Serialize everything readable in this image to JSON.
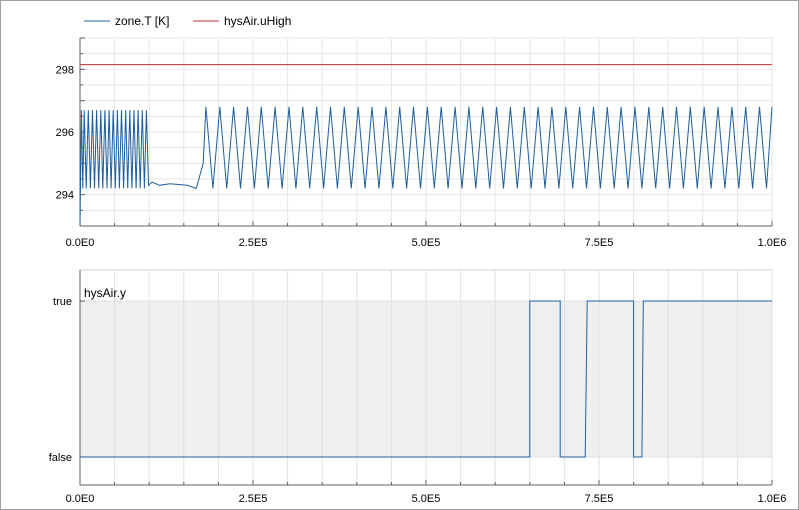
{
  "chart_data": [
    {
      "type": "line",
      "xlim": [
        0,
        1000000
      ],
      "ylim": [
        293,
        299
      ],
      "x_ticks": [
        "0.0E0",
        "2.5E5",
        "5.0E5",
        "7.5E5",
        "1.0E6"
      ],
      "y_ticks": [
        "294",
        "296",
        "298"
      ],
      "grid": true,
      "legend": "top-left",
      "series": [
        {
          "name": "zone.T [K]",
          "color": "#1f5fa0",
          "points": [
            [
              0,
              293.0
            ],
            [
              2000,
              296.7
            ],
            [
              4000,
              294.2
            ],
            [
              6000,
              296.7
            ],
            [
              9000,
              294.2
            ],
            [
              12000,
              296.7
            ],
            [
              15000,
              294.2
            ],
            [
              18000,
              296.7
            ],
            [
              21000,
              294.2
            ],
            [
              24000,
              296.7
            ],
            [
              27000,
              294.2
            ],
            [
              30000,
              296.7
            ],
            [
              33000,
              294.2
            ],
            [
              36000,
              296.7
            ],
            [
              39000,
              294.2
            ],
            [
              42000,
              296.7
            ],
            [
              45000,
              294.2
            ],
            [
              48000,
              296.7
            ],
            [
              51000,
              294.2
            ],
            [
              54000,
              296.7
            ],
            [
              57000,
              294.2
            ],
            [
              60000,
              296.7
            ],
            [
              63000,
              294.2
            ],
            [
              66000,
              296.7
            ],
            [
              69000,
              294.2
            ],
            [
              72000,
              296.7
            ],
            [
              75000,
              294.2
            ],
            [
              78000,
              296.7
            ],
            [
              81000,
              294.2
            ],
            [
              84000,
              296.7
            ],
            [
              87000,
              294.2
            ],
            [
              90000,
              296.7
            ],
            [
              93000,
              294.2
            ],
            [
              96000,
              296.7
            ],
            [
              99000,
              294.3
            ],
            [
              104000,
              294.4
            ],
            [
              115000,
              294.3
            ],
            [
              130000,
              294.35
            ],
            [
              155000,
              294.3
            ],
            [
              168000,
              294.2
            ],
            [
              178000,
              295.0
            ],
            [
              182000,
              296.8
            ],
            [
              192000,
              294.2
            ],
            [
              202000,
              296.8
            ],
            [
              212000,
              294.2
            ],
            [
              222000,
              296.8
            ],
            [
              232000,
              294.2
            ],
            [
              242000,
              296.8
            ],
            [
              252000,
              294.2
            ],
            [
              262000,
              296.8
            ],
            [
              272000,
              294.2
            ],
            [
              282000,
              296.8
            ],
            [
              292000,
              294.2
            ],
            [
              302000,
              296.8
            ],
            [
              312000,
              294.2
            ],
            [
              322000,
              296.8
            ],
            [
              332000,
              294.2
            ],
            [
              342000,
              296.8
            ],
            [
              352000,
              294.2
            ],
            [
              362000,
              296.8
            ],
            [
              372000,
              294.2
            ],
            [
              382000,
              296.8
            ],
            [
              392000,
              294.2
            ],
            [
              402000,
              296.8
            ],
            [
              412000,
              294.2
            ],
            [
              422000,
              296.8
            ],
            [
              432000,
              294.2
            ],
            [
              442000,
              296.8
            ],
            [
              452000,
              294.2
            ],
            [
              462000,
              296.8
            ],
            [
              472000,
              294.2
            ],
            [
              482000,
              296.8
            ],
            [
              492000,
              294.2
            ],
            [
              502000,
              296.8
            ],
            [
              512000,
              294.2
            ],
            [
              522000,
              296.8
            ],
            [
              532000,
              294.2
            ],
            [
              542000,
              296.8
            ],
            [
              552000,
              294.2
            ],
            [
              562000,
              296.8
            ],
            [
              572000,
              294.2
            ],
            [
              582000,
              296.8
            ],
            [
              592000,
              294.2
            ],
            [
              602000,
              296.8
            ],
            [
              612000,
              294.2
            ],
            [
              622000,
              296.8
            ],
            [
              632000,
              294.2
            ],
            [
              642000,
              296.8
            ],
            [
              652000,
              294.2
            ],
            [
              662000,
              296.8
            ],
            [
              672000,
              294.2
            ],
            [
              682000,
              296.8
            ],
            [
              692000,
              294.2
            ],
            [
              702000,
              296.8
            ],
            [
              712000,
              294.2
            ],
            [
              722000,
              296.8
            ],
            [
              732000,
              294.2
            ],
            [
              742000,
              296.8
            ],
            [
              752000,
              294.2
            ],
            [
              762000,
              296.8
            ],
            [
              772000,
              294.2
            ],
            [
              782000,
              296.8
            ],
            [
              792000,
              294.2
            ],
            [
              802000,
              296.8
            ],
            [
              812000,
              294.2
            ],
            [
              822000,
              296.8
            ],
            [
              832000,
              294.2
            ],
            [
              842000,
              296.8
            ],
            [
              852000,
              294.2
            ],
            [
              862000,
              296.8
            ],
            [
              872000,
              294.2
            ],
            [
              882000,
              296.8
            ],
            [
              892000,
              294.2
            ],
            [
              902000,
              296.8
            ],
            [
              912000,
              294.2
            ],
            [
              922000,
              296.8
            ],
            [
              932000,
              294.2
            ],
            [
              942000,
              296.8
            ],
            [
              952000,
              294.2
            ],
            [
              962000,
              296.8
            ],
            [
              972000,
              294.2
            ],
            [
              982000,
              296.8
            ],
            [
              992000,
              294.2
            ],
            [
              1000000,
              296.8
            ]
          ]
        },
        {
          "name": "hysAir.uHigh",
          "color": "#c03030",
          "points": [
            [
              0,
              298.15
            ],
            [
              1000000,
              298.15
            ]
          ]
        }
      ]
    },
    {
      "type": "line",
      "xlim": [
        0,
        1000000
      ],
      "x_ticks": [
        "0.0E0",
        "2.5E5",
        "5.0E5",
        "7.5E5",
        "1.0E6"
      ],
      "y_ticks": [
        "false",
        "true"
      ],
      "grid": true,
      "series": [
        {
          "name": "hysAir.y",
          "color": "#1f5fa0",
          "points": [
            [
              0,
              0
            ],
            [
              650000,
              0
            ],
            [
              650000,
              1
            ],
            [
              694000,
              1
            ],
            [
              694000,
              0
            ],
            [
              730000,
              0
            ],
            [
              733000,
              1
            ],
            [
              800000,
              1
            ],
            [
              800000,
              0
            ],
            [
              812000,
              0
            ],
            [
              814000,
              1
            ],
            [
              1000000,
              1
            ]
          ]
        }
      ]
    }
  ]
}
